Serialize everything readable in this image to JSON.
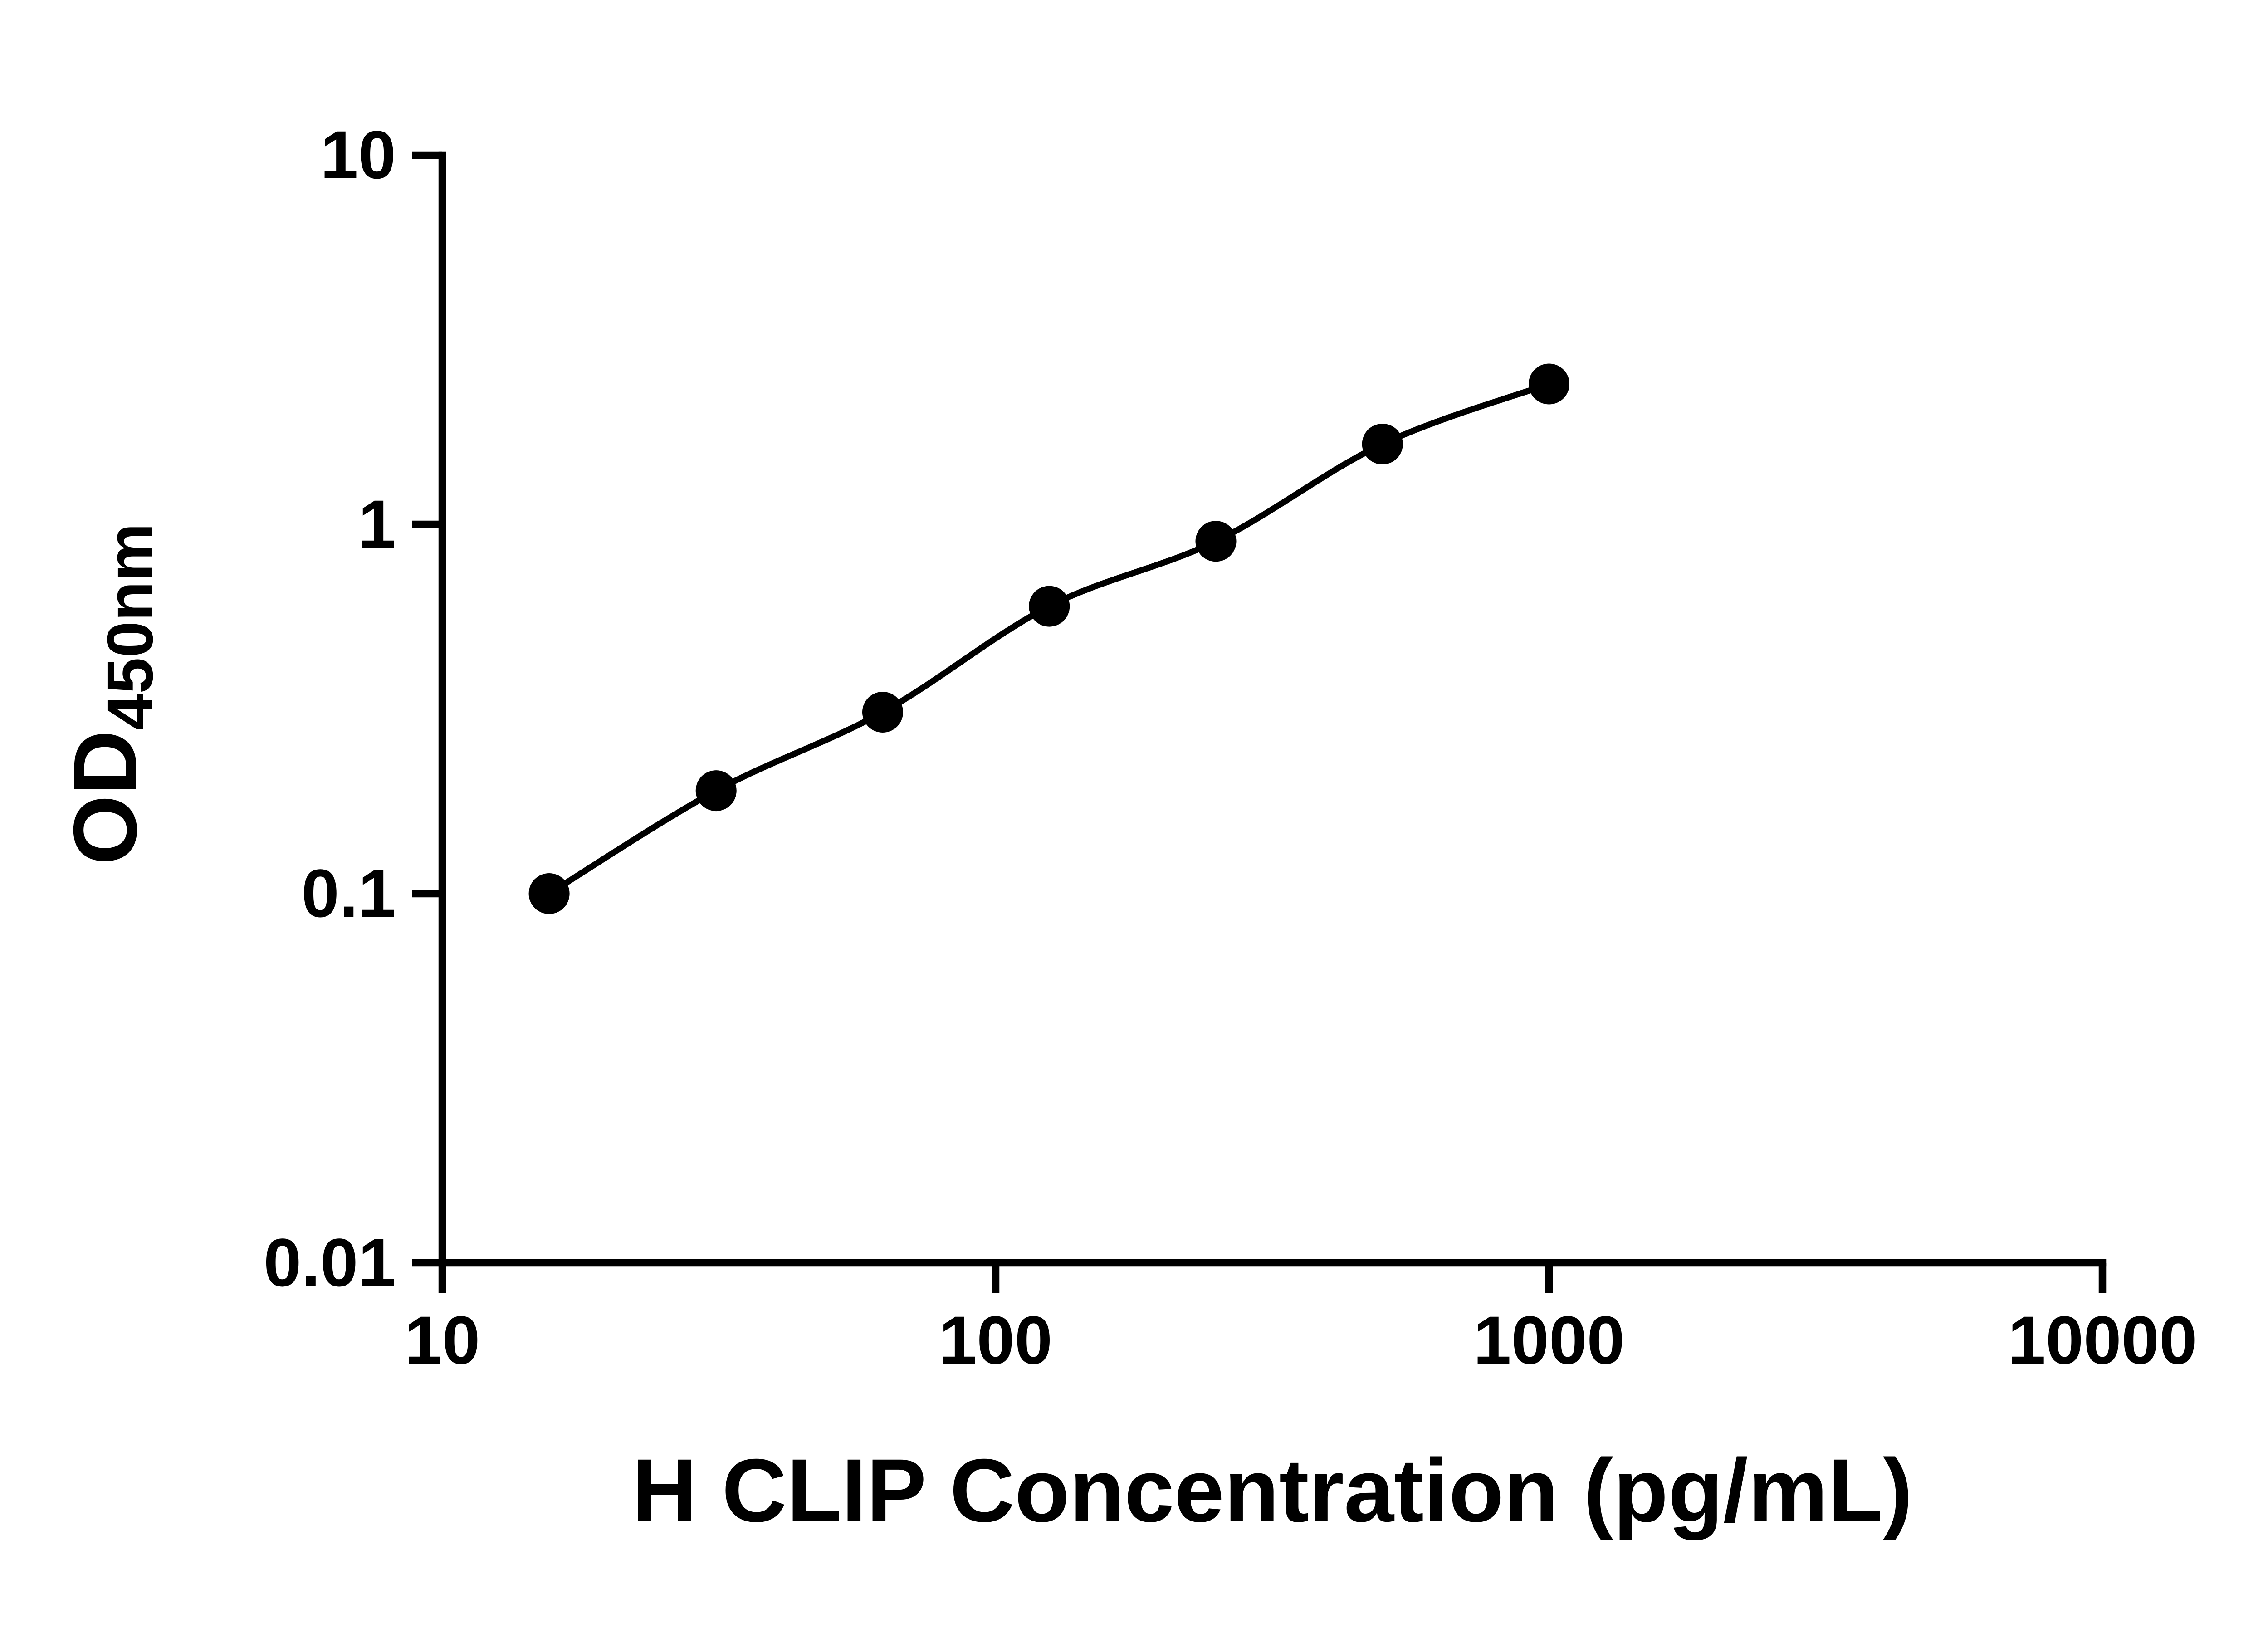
{
  "chart_data": {
    "type": "scatter",
    "subtype": "log-log standard curve with smooth connecting line",
    "x": [
      15.6,
      31.25,
      62.5,
      125,
      250,
      500,
      1000
    ],
    "y": [
      0.1,
      0.19,
      0.31,
      0.6,
      0.9,
      1.65,
      2.4
    ],
    "xlabel": "H CLIP Concentration (pg/mL)",
    "ylabel_base": "OD",
    "ylabel_sub": "450nm",
    "x_scale": "log",
    "y_scale": "log",
    "xlim": [
      10,
      10000
    ],
    "ylim": [
      0.01,
      10
    ],
    "x_ticks": [
      10,
      100,
      1000,
      10000
    ],
    "x_tick_labels": [
      "10",
      "100",
      "1000",
      "10000"
    ],
    "y_ticks": [
      0.01,
      0.1,
      1,
      10
    ],
    "y_tick_labels": [
      "0.01",
      "0.1",
      "1",
      "10"
    ],
    "grid": false,
    "legend": null,
    "title": "",
    "line_color": "#000000",
    "marker_color": "#000000",
    "axis_color": "#000000",
    "background_color": "#ffffff"
  }
}
